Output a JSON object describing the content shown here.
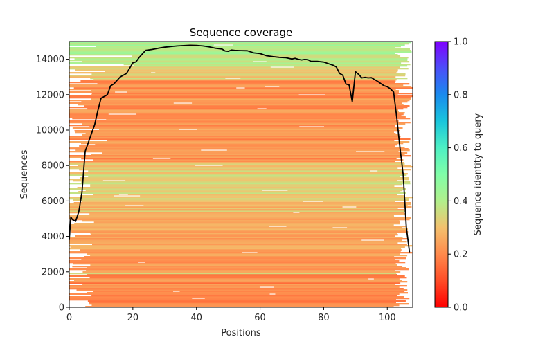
{
  "chart_data": {
    "type": "heatmap",
    "title": "Sequence coverage",
    "xlabel": "Positions",
    "ylabel": "Sequences",
    "xlim": [
      0,
      108
    ],
    "ylim": [
      0,
      15000
    ],
    "x_ticks": [
      0,
      20,
      40,
      60,
      80,
      100
    ],
    "x_tick_labels": [
      "0",
      "20",
      "40",
      "60",
      "80",
      "100"
    ],
    "y_ticks": [
      0,
      2000,
      4000,
      6000,
      8000,
      10000,
      12000,
      14000
    ],
    "y_tick_labels": [
      "0",
      "2000",
      "4000",
      "6000",
      "8000",
      "10000",
      "12000",
      "14000"
    ],
    "colorbar": {
      "label": "Sequence identity to query",
      "range": [
        0.0,
        1.0
      ],
      "ticks": [
        0.0,
        0.2,
        0.4,
        0.6,
        0.8,
        1.0
      ],
      "tick_labels": [
        "0.0",
        "0.2",
        "0.4",
        "0.6",
        "0.8",
        "1.0"
      ],
      "colormap": "rainbow_r"
    },
    "identity_bands": [
      {
        "from": 0,
        "to": 1900,
        "identity": 0.2
      },
      {
        "from": 1900,
        "to": 2000,
        "identity": 0.3
      },
      {
        "from": 2000,
        "to": 4000,
        "identity": 0.24
      },
      {
        "from": 4000,
        "to": 5400,
        "identity": 0.25
      },
      {
        "from": 5400,
        "to": 5500,
        "identity": 0.38
      },
      {
        "from": 5500,
        "to": 6000,
        "identity": 0.27
      },
      {
        "from": 6000,
        "to": 8200,
        "identity": 0.33
      },
      {
        "from": 8200,
        "to": 12800,
        "identity": 0.22
      },
      {
        "from": 12800,
        "to": 13600,
        "identity": 0.32
      },
      {
        "from": 13600,
        "to": 15000,
        "identity": 0.4
      }
    ],
    "series": [
      {
        "name": "coverage",
        "color": "#000000",
        "x": [
          0,
          0.5,
          1,
          2,
          3,
          4,
          5,
          6,
          7,
          8,
          9,
          10,
          11,
          12,
          13,
          14,
          15,
          16,
          17,
          18,
          19,
          20,
          21,
          22,
          23,
          24,
          26,
          28,
          30,
          32,
          34,
          36,
          38,
          40,
          42,
          44,
          46,
          48,
          49,
          50,
          51,
          52,
          54,
          56,
          58,
          60,
          62,
          64,
          66,
          68,
          70,
          71,
          72,
          73,
          74,
          75,
          76,
          78,
          80,
          81,
          82,
          83,
          84,
          85,
          86,
          87,
          88,
          89,
          90,
          91,
          92,
          93,
          94,
          95,
          96,
          97,
          98,
          99,
          100,
          101,
          102,
          103,
          104,
          105,
          106,
          107
        ],
        "y": [
          3800,
          5100,
          4950,
          4850,
          5400,
          6500,
          8800,
          9300,
          9800,
          10300,
          11100,
          11800,
          11900,
          12000,
          12500,
          12600,
          12800,
          13000,
          13100,
          13200,
          13500,
          13800,
          13850,
          14100,
          14300,
          14500,
          14550,
          14620,
          14680,
          14720,
          14750,
          14770,
          14790,
          14780,
          14750,
          14700,
          14620,
          14580,
          14470,
          14450,
          14520,
          14500,
          14490,
          14480,
          14360,
          14320,
          14200,
          14150,
          14110,
          14090,
          14010,
          14050,
          14000,
          13960,
          13990,
          13980,
          13880,
          13880,
          13840,
          13780,
          13720,
          13660,
          13560,
          13200,
          13100,
          12600,
          12550,
          11600,
          13300,
          13150,
          12950,
          12980,
          12950,
          12960,
          12850,
          12750,
          12620,
          12500,
          12450,
          12330,
          12150,
          10700,
          9000,
          7500,
          4500,
          3100
        ]
      }
    ]
  }
}
